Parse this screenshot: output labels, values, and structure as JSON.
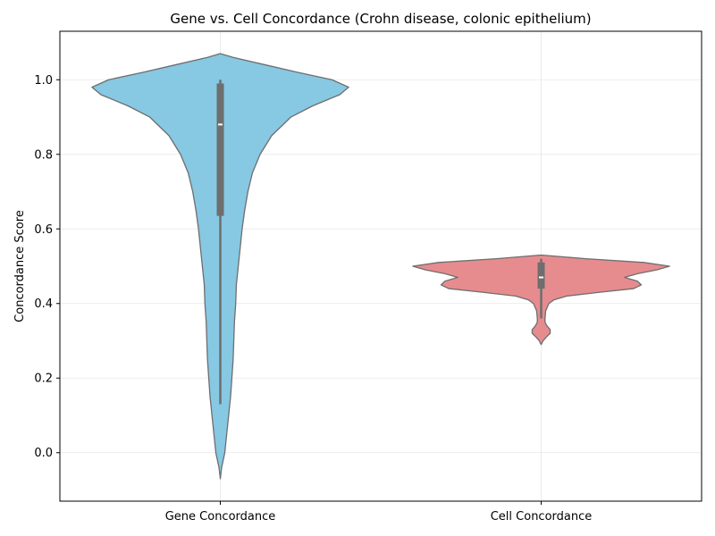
{
  "chart_data": {
    "type": "violin",
    "title": "Gene vs. Cell Concordance (Crohn disease, colonic epithelium)",
    "xlabel": "",
    "ylabel": "Concordance Score",
    "ylim": [
      -0.13,
      1.13
    ],
    "yticks": [
      0.0,
      0.2,
      0.4,
      0.6,
      0.8,
      1.0
    ],
    "ytick_labels": [
      "0.0",
      "0.2",
      "0.4",
      "0.6",
      "0.8",
      "1.0"
    ],
    "grid": true,
    "categories": [
      "Gene Concordance",
      "Cell Concordance"
    ],
    "series": [
      {
        "category": "Gene Concordance",
        "color": "#87c8e3",
        "range": [
          -0.07,
          1.07
        ],
        "box": {
          "min": 0.13,
          "q1": 0.635,
          "median": 0.88,
          "q3": 0.99,
          "max": 1.0
        },
        "density_profile": [
          [
            -0.07,
            0.0
          ],
          [
            -0.04,
            0.01
          ],
          [
            0.0,
            0.035
          ],
          [
            0.05,
            0.05
          ],
          [
            0.1,
            0.065
          ],
          [
            0.15,
            0.08
          ],
          [
            0.2,
            0.09
          ],
          [
            0.25,
            0.1
          ],
          [
            0.3,
            0.105
          ],
          [
            0.35,
            0.11
          ],
          [
            0.4,
            0.12
          ],
          [
            0.45,
            0.125
          ],
          [
            0.5,
            0.14
          ],
          [
            0.55,
            0.155
          ],
          [
            0.6,
            0.17
          ],
          [
            0.65,
            0.19
          ],
          [
            0.7,
            0.215
          ],
          [
            0.75,
            0.25
          ],
          [
            0.8,
            0.31
          ],
          [
            0.85,
            0.4
          ],
          [
            0.9,
            0.55
          ],
          [
            0.93,
            0.72
          ],
          [
            0.96,
            0.93
          ],
          [
            0.98,
            1.0
          ],
          [
            1.0,
            0.87
          ],
          [
            1.02,
            0.6
          ],
          [
            1.04,
            0.35
          ],
          [
            1.06,
            0.1
          ],
          [
            1.07,
            0.0
          ]
        ]
      },
      {
        "category": "Cell Concordance",
        "color": "#e68c8f",
        "range": [
          0.29,
          0.53
        ],
        "box": {
          "min": 0.36,
          "q1": 0.44,
          "median": 0.47,
          "q3": 0.51,
          "max": 0.52
        },
        "density_profile": [
          [
            0.29,
            0.0
          ],
          [
            0.3,
            0.015
          ],
          [
            0.31,
            0.04
          ],
          [
            0.32,
            0.07
          ],
          [
            0.33,
            0.07
          ],
          [
            0.34,
            0.045
          ],
          [
            0.35,
            0.03
          ],
          [
            0.36,
            0.03
          ],
          [
            0.38,
            0.035
          ],
          [
            0.4,
            0.06
          ],
          [
            0.41,
            0.1
          ],
          [
            0.42,
            0.2
          ],
          [
            0.43,
            0.45
          ],
          [
            0.44,
            0.72
          ],
          [
            0.45,
            0.78
          ],
          [
            0.46,
            0.75
          ],
          [
            0.47,
            0.65
          ],
          [
            0.48,
            0.75
          ],
          [
            0.49,
            0.9
          ],
          [
            0.5,
            1.0
          ],
          [
            0.51,
            0.8
          ],
          [
            0.52,
            0.35
          ],
          [
            0.53,
            0.0
          ]
        ]
      }
    ]
  }
}
